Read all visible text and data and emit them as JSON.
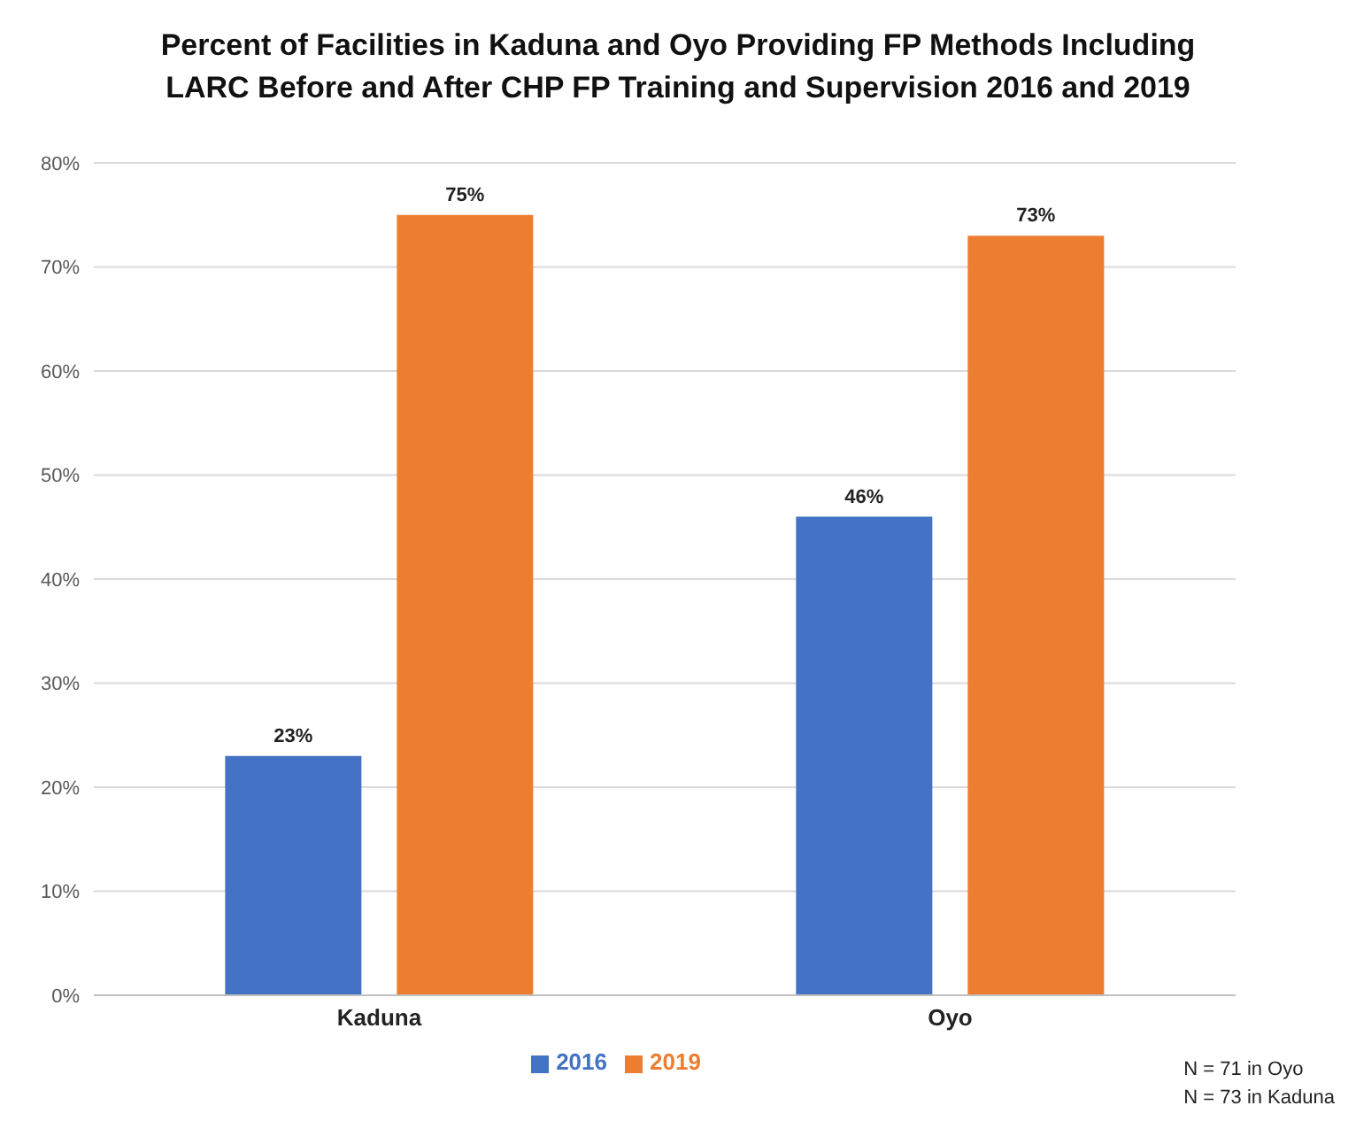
{
  "chart_data": {
    "type": "bar",
    "title": "Percent of Facilities in Kaduna and Oyo Providing FP Methods Including LARC Before and After CHP FP Training and Supervision 2016 and 2019",
    "categories": [
      "Kaduna",
      "Oyo"
    ],
    "series": [
      {
        "name": "2016",
        "color": "#4472c4",
        "values": [
          23,
          46
        ],
        "value_labels": [
          "23%",
          "46%"
        ]
      },
      {
        "name": "2019",
        "color": "#ed7d31",
        "values": [
          75,
          73
        ],
        "value_labels": [
          "75%",
          "73%"
        ]
      }
    ],
    "ylim": [
      0,
      80
    ],
    "yticks": [
      {
        "value": 0,
        "label": "0%"
      },
      {
        "value": 10,
        "label": "10%"
      },
      {
        "value": 20,
        "label": "20%"
      },
      {
        "value": 30,
        "label": "30%"
      },
      {
        "value": 40,
        "label": "40%"
      },
      {
        "value": 50,
        "label": "50%"
      },
      {
        "value": 60,
        "label": "60%"
      },
      {
        "value": 70,
        "label": "70%"
      },
      {
        "value": 80,
        "label": "80%"
      }
    ],
    "grid": "y",
    "legend": "bottom",
    "annotations": [
      "N = 71 in Oyo",
      "N = 73 in Kaduna"
    ]
  }
}
